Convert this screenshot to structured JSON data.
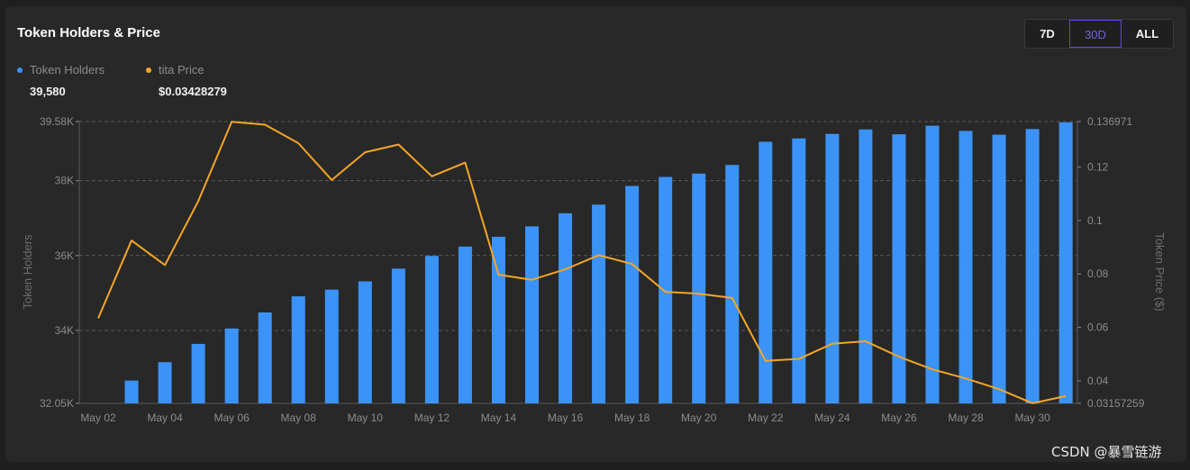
{
  "header": {
    "title": "Token Holders & Price",
    "ranges": [
      "7D",
      "30D",
      "ALL"
    ],
    "selected_range": "30D"
  },
  "legend": [
    {
      "label": "Token Holders",
      "value": "39,580",
      "color": "#3b93f7"
    },
    {
      "label": "tita Price",
      "value": "$0.03428279",
      "color": "#f5a623"
    }
  ],
  "chart_data": {
    "type": "bar",
    "x_tick_labels": [
      "May 02",
      "May 04",
      "May 06",
      "May 08",
      "May 10",
      "May 12",
      "May 14",
      "May 16",
      "May 18",
      "May 20",
      "May 22",
      "May 24",
      "May 26",
      "May 28",
      "May 30"
    ],
    "left_axis": {
      "label": "Token Holders",
      "tick_labels": [
        "39.58K",
        "38K",
        "36K",
        "34K",
        "32.05K"
      ],
      "ylim": [
        32050,
        39580
      ]
    },
    "right_axis": {
      "label": "Token Price ($)",
      "tick_labels": [
        "0.136971",
        "0.12",
        "0.1",
        "0.08",
        "0.06",
        "0.04",
        "0.03157259"
      ],
      "ylim": [
        0.03157259,
        0.136971
      ]
    },
    "categories": [
      "May 02",
      "May 03",
      "May 04",
      "May 05",
      "May 06",
      "May 07",
      "May 08",
      "May 09",
      "May 10",
      "May 11",
      "May 12",
      "May 13",
      "May 14",
      "May 15",
      "May 16",
      "May 17",
      "May 18",
      "May 19",
      "May 20",
      "May 21",
      "May 22",
      "May 23",
      "May 24",
      "May 25",
      "May 26",
      "May 27",
      "May 28",
      "May 29",
      "May 30",
      "May 31"
    ],
    "series": [
      {
        "name": "Token Holders",
        "type": "bar",
        "axis": "left",
        "color": "#3b93f7",
        "values": [
          null,
          32660,
          33150,
          33640,
          34050,
          34480,
          34910,
          35090,
          35310,
          35650,
          35990,
          36240,
          36500,
          36780,
          37130,
          37360,
          37860,
          38100,
          38190,
          38420,
          39040,
          39130,
          39250,
          39370,
          39240,
          39470,
          39330,
          39230,
          39380,
          39560
        ]
      },
      {
        "name": "tita Price",
        "type": "line",
        "axis": "right",
        "color": "#f5a623",
        "values": [
          0.0634,
          0.0925,
          0.0833,
          0.1072,
          0.1369,
          0.1358,
          0.1289,
          0.1151,
          0.1255,
          0.1284,
          0.1165,
          0.1216,
          0.0797,
          0.0778,
          0.0817,
          0.087,
          0.0837,
          0.0733,
          0.0726,
          0.071,
          0.0475,
          0.0482,
          0.0539,
          0.0548,
          0.049,
          0.0443,
          0.0409,
          0.0369,
          0.0316,
          0.0343
        ]
      }
    ],
    "grid": true
  },
  "watermark": "CSDN @暴雪链游"
}
